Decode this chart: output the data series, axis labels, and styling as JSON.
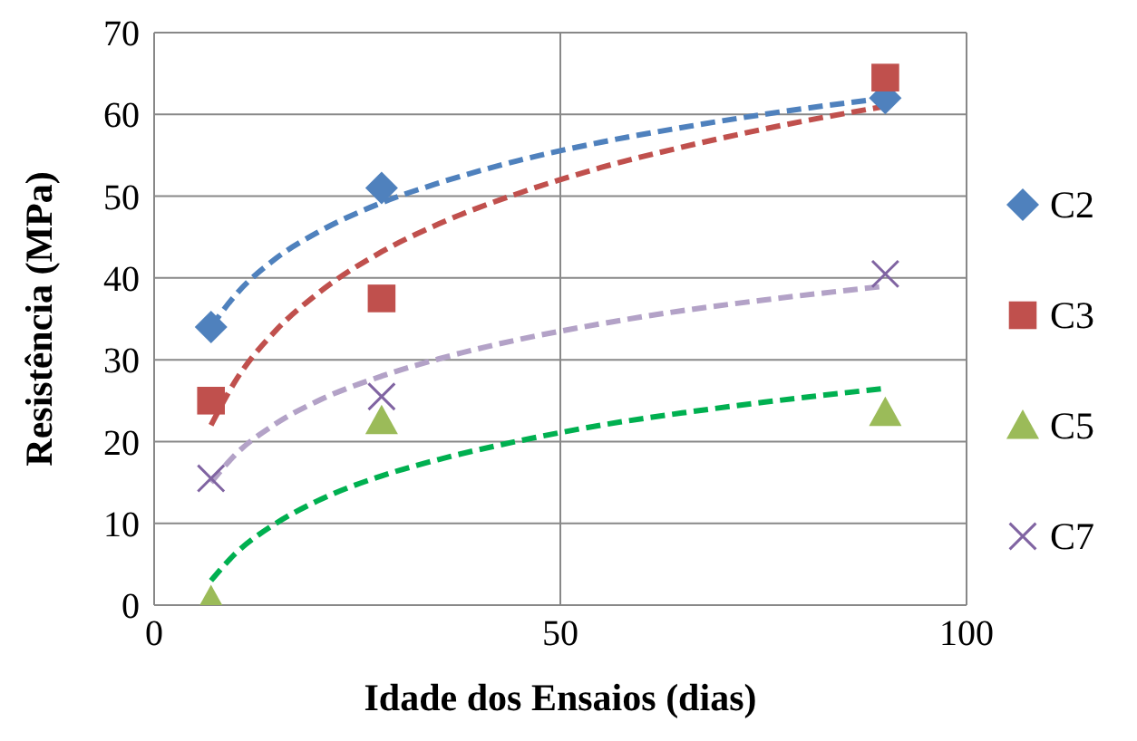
{
  "chart_data": {
    "type": "scatter",
    "xlabel": "Idade dos Ensaios (dias)",
    "ylabel": "Resistência (MPa)",
    "xlim": [
      0,
      100
    ],
    "xticks": [
      0,
      50,
      100
    ],
    "ylim": [
      0,
      70
    ],
    "yticks": [
      0,
      10,
      20,
      30,
      40,
      50,
      60,
      70
    ],
    "grid": true,
    "legend": "right",
    "series": [
      {
        "name": "C2",
        "marker": "diamond",
        "color": "#4f81bd",
        "x": [
          7,
          28,
          90
        ],
        "values": [
          34,
          51,
          62
        ]
      },
      {
        "name": "C3",
        "marker": "square",
        "color": "#c0504d",
        "x": [
          7,
          28,
          90
        ],
        "values": [
          25,
          37.5,
          64.5
        ]
      },
      {
        "name": "C5",
        "marker": "triangle",
        "color": "#9bbb59",
        "x": [
          7,
          28,
          90
        ],
        "values": [
          0.5,
          22.5,
          23.5
        ]
      },
      {
        "name": "C7",
        "marker": "cross",
        "color": "#8064a2",
        "x": [
          7,
          28,
          90
        ],
        "values": [
          15.5,
          25.5,
          40.5
        ]
      },
      {
        "type": "line",
        "line_style": "dashed",
        "color": "#4f81bd",
        "x": [
          7,
          10,
          15,
          20,
          28,
          35,
          45,
          55,
          65,
          75,
          90
        ],
        "values": [
          34,
          37.9,
          42.4,
          45.5,
          49.2,
          51.6,
          54.4,
          56.6,
          58.4,
          60,
          62
        ]
      },
      {
        "type": "line",
        "line_style": "dashed",
        "color": "#c0504d",
        "x": [
          7,
          10,
          15,
          20,
          28,
          35,
          45,
          55,
          65,
          75,
          90
        ],
        "values": [
          22,
          27.4,
          33.6,
          38,
          43.2,
          46.6,
          50.4,
          53.5,
          56,
          58.2,
          61
        ]
      },
      {
        "type": "line",
        "line_style": "dashed",
        "color": "#00b050",
        "x": [
          7,
          10,
          15,
          20,
          28,
          35,
          45,
          55,
          65,
          75,
          90
        ],
        "values": [
          3,
          6.3,
          10,
          12.7,
          15.8,
          17.8,
          20.1,
          22,
          23.5,
          24.8,
          26.5
        ]
      },
      {
        "type": "line",
        "line_style": "dashed",
        "color": "#b3a2c7",
        "x": [
          7,
          10,
          15,
          20,
          28,
          35,
          45,
          55,
          65,
          75,
          90
        ],
        "values": [
          15,
          18.4,
          22.2,
          24.9,
          28,
          30.1,
          32.5,
          34.4,
          36,
          37.3,
          39
        ]
      }
    ]
  }
}
